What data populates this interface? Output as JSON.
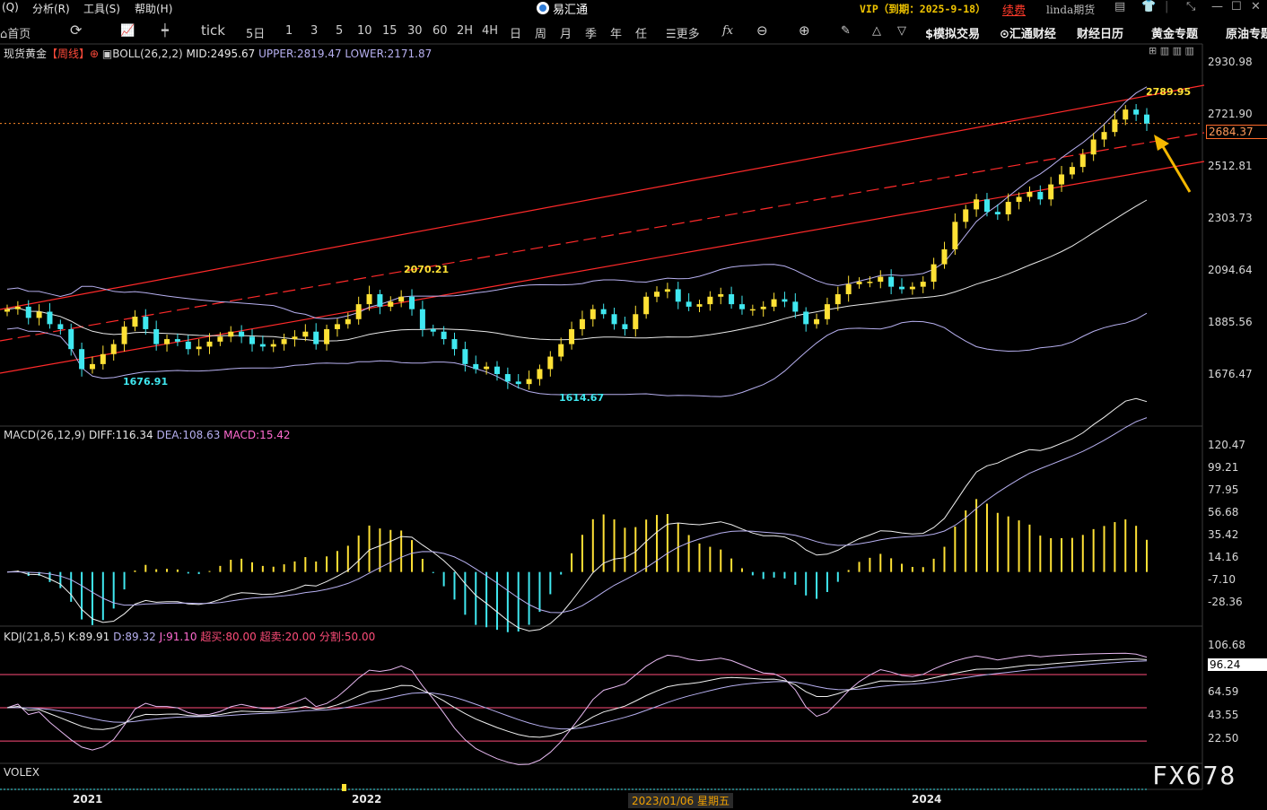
{
  "menu": {
    "item_q": "(Q)",
    "item_analysis": "分析(R)",
    "item_tools": "工具(S)",
    "item_help": "帮助(H)"
  },
  "app": {
    "title": "易汇通"
  },
  "account": {
    "vip": "VIP（到期：2025-9-18）",
    "renew": "续费",
    "user": "linda期货"
  },
  "toolbar": {
    "home": "首页",
    "tick": "tick",
    "periods": [
      "5日",
      "1",
      "3",
      "5",
      "10",
      "15",
      "30",
      "60",
      "2H",
      "4H",
      "日",
      "周",
      "月",
      "季",
      "年",
      "任"
    ],
    "more": "更多",
    "fx": "fx",
    "sim_trade": "模拟交易",
    "fin_news": "汇通财经",
    "calendar": "财经日历",
    "gold_topic": "黄金专题",
    "oil_topic": "原油专题"
  },
  "legend": {
    "instrument": "现货黄金",
    "period": "【周线】",
    "boll_name": "BOLL(26,2,2)",
    "mid": "MID:2495.67",
    "upper": "UPPER:2819.47",
    "lower": "LOWER:2171.87",
    "macd_name": "MACD(26,12,9)",
    "diff": "DIFF:116.34",
    "dea": "DEA:108.63",
    "macd": "MACD:15.42",
    "kdj_name": "KDJ(21,8,5)",
    "k": "K:89.91",
    "d": "D:89.32",
    "j": "J:91.10",
    "overbought": "超买:80.00",
    "oversold": "超卖:20.00",
    "split": "分割:50.00",
    "volex": "VOLEX"
  },
  "price_axis": [
    "2930.98",
    "2721.90",
    "2512.81",
    "2303.73",
    "2094.64",
    "1885.56",
    "1676.47"
  ],
  "current_price": "2684.37",
  "macd_axis": [
    "120.47",
    "99.21",
    "77.95",
    "56.68",
    "35.42",
    "14.16",
    "-7.10",
    "-28.36"
  ],
  "kdj_axis": [
    "106.68",
    "64.59",
    "43.55",
    "22.50"
  ],
  "kdj_current": "96.24",
  "annotations": {
    "high": "2789.95",
    "peak_2022": "2070.21",
    "low_2021": "1676.91",
    "low_2022": "1614.67"
  },
  "x_axis": {
    "y2021": "2021",
    "y2022": "2022",
    "cursor_date": "2023/01/06 星期五",
    "y2024": "2024"
  },
  "watermark": "FX678",
  "colors": {
    "up": "#ffe135",
    "down": "#40e8f0",
    "channel": "#ff2a2a",
    "boll_band": "#b7b0f0",
    "boll_mid": "#e8e8e8",
    "kdj_line": "#ff4d7a",
    "arrow": "#f5b800"
  },
  "chart_data": {
    "type": "candlestick",
    "title": "现货黄金 周线",
    "indicators": [
      "BOLL(26,2,2)",
      "MACD(26,12,9)",
      "KDJ(21,8,5)",
      "VOLEX"
    ],
    "boll": {
      "mid": 2495.67,
      "upper": 2819.47,
      "lower": 2171.87
    },
    "macd": {
      "diff": 116.34,
      "dea": 108.63,
      "macd": 15.42
    },
    "kdj": {
      "k": 89.91,
      "d": 89.32,
      "j": 91.1,
      "overbought": 80.0,
      "oversold": 20.0,
      "split": 50.0
    },
    "last_price": 2684.37,
    "marked_high": 2789.95,
    "marked_lows": [
      1676.91,
      1614.67
    ],
    "close_path": [
      1940,
      1950,
      1905,
      1930,
      1880,
      1860,
      1780,
      1700,
      1720,
      1760,
      1800,
      1870,
      1910,
      1860,
      1800,
      1820,
      1810,
      1780,
      1790,
      1810,
      1830,
      1850,
      1830,
      1800,
      1790,
      1800,
      1820,
      1830,
      1850,
      1800,
      1860,
      1880,
      1900,
      1960,
      2000,
      1950,
      1970,
      1990,
      1940,
      1860,
      1850,
      1820,
      1780,
      1720,
      1700,
      1710,
      1680,
      1650,
      1640,
      1660,
      1700,
      1750,
      1800,
      1860,
      1900,
      1940,
      1920,
      1880,
      1860,
      1920,
      1990,
      2010,
      2020,
      1970,
      1950,
      1960,
      1990,
      2000,
      1960,
      1940,
      1940,
      1950,
      1980,
      1970,
      1930,
      1880,
      1900,
      1960,
      2000,
      2040,
      2050,
      2050,
      2070,
      2030,
      2020,
      2030,
      2050,
      2120,
      2180,
      2290,
      2340,
      2380,
      2330,
      2320,
      2370,
      2390,
      2410,
      2380,
      2440,
      2480,
      2510,
      2560,
      2620,
      2650,
      2700,
      2740,
      2720,
      2684
    ]
  }
}
